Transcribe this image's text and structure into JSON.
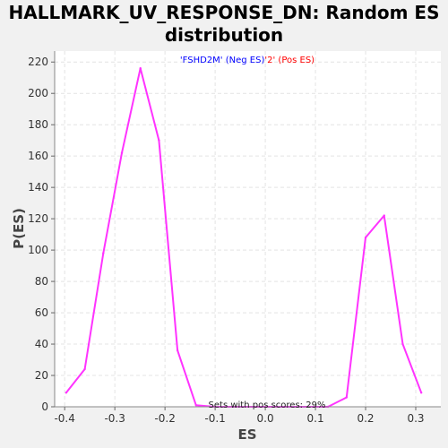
{
  "chart_data": {
    "type": "line",
    "title_line1": "HALLMARK_UV_RESPONSE_DN: Random ES",
    "title_line2": "distribution",
    "xlabel": "ES",
    "ylabel": "P(ES)",
    "xlim": [
      -0.42,
      0.35
    ],
    "ylim": [
      0,
      227
    ],
    "x_ticks": [
      -0.4,
      -0.3,
      -0.2,
      -0.1,
      0.0,
      0.1,
      0.2,
      0.3
    ],
    "x_tick_labels": [
      "-0.4",
      "-0.3",
      "-0.2",
      "-0.1",
      "0.0",
      "0.1",
      "0.2",
      "0.3"
    ],
    "y_ticks": [
      0,
      20,
      40,
      60,
      80,
      100,
      120,
      140,
      160,
      180,
      200,
      220
    ],
    "grid": true,
    "series": [
      {
        "color": "#ff33ff",
        "x": [
          -0.397,
          -0.36,
          -0.323,
          -0.286,
          -0.249,
          -0.212,
          -0.175,
          -0.138,
          -0.101,
          0.125,
          0.162,
          0.2,
          0.237,
          0.274,
          0.311
        ],
        "y": [
          9,
          24,
          98,
          162,
          216,
          170,
          36,
          1,
          0,
          0,
          6,
          108,
          122,
          40,
          9
        ]
      }
    ],
    "legend": {
      "placement": "top-center",
      "neg_text": "'FSHD2M' (Neg ES)",
      "pos_text": "'2' (Pos ES)",
      "neg_color": "#0000ff",
      "pos_color": "#ff0000"
    },
    "annotation": "Sets with pos scores: 29%"
  }
}
